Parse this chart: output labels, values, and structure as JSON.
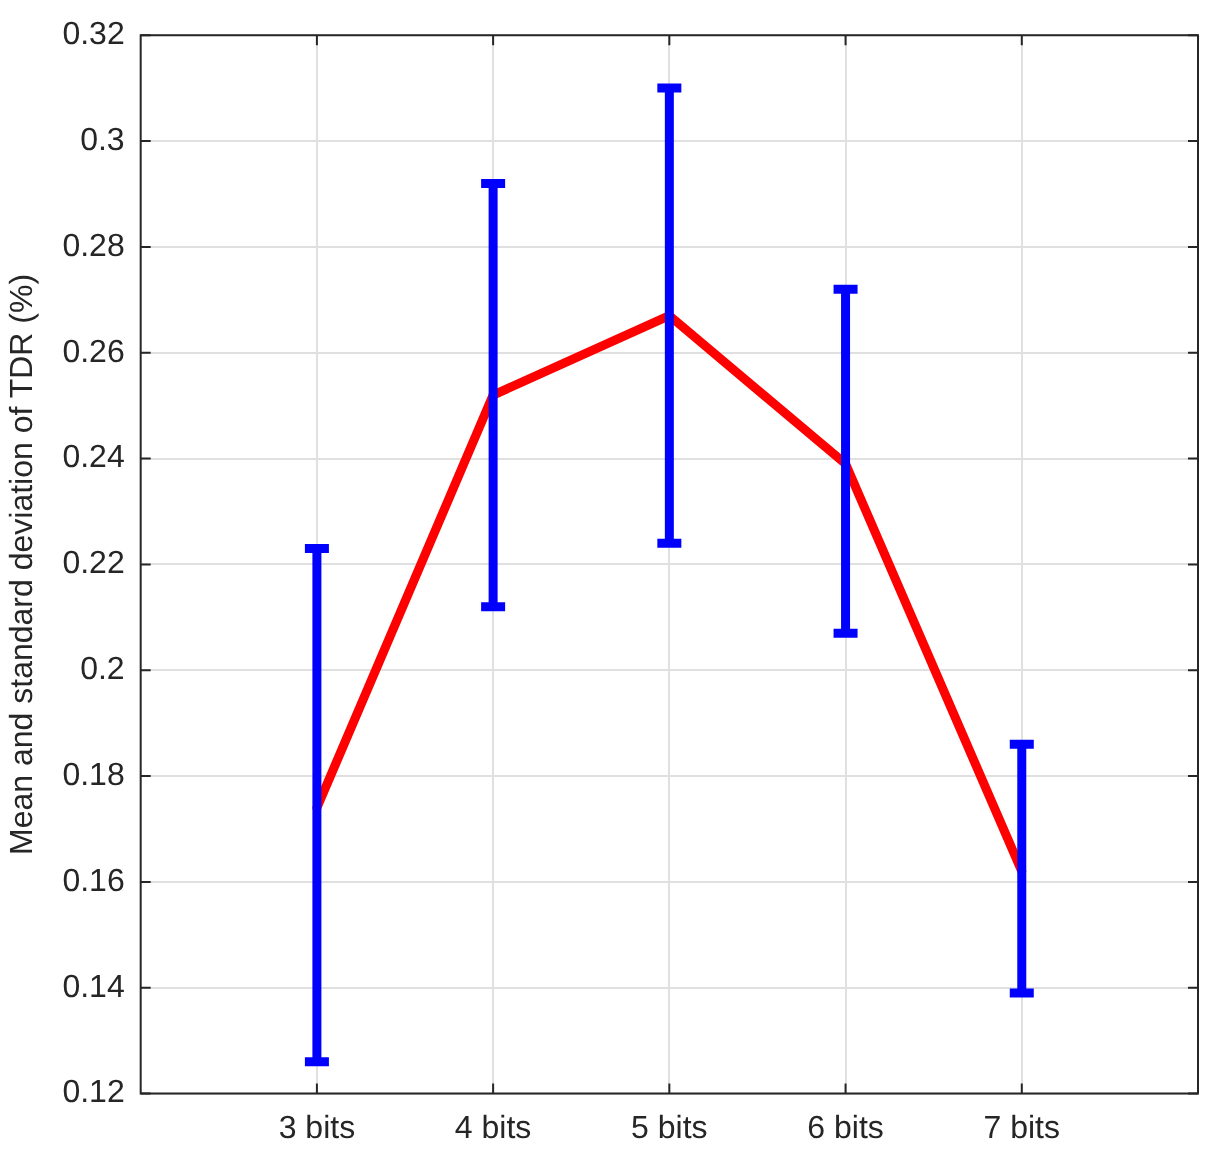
{
  "chart_data": {
    "type": "line",
    "ylabel": "Mean and standard deviation of TDR (%)",
    "categories": [
      "3 bits",
      "4 bits",
      "5 bits",
      "6 bits",
      "7 bits"
    ],
    "series": [
      {
        "color": "#ff0000",
        "values": [
          0.174,
          0.252,
          0.267,
          0.239,
          0.162
        ],
        "errors": [
          [
            0.126,
            0.223
          ],
          [
            0.212,
            0.292
          ],
          [
            0.224,
            0.31
          ],
          [
            0.207,
            0.272
          ],
          [
            0.139,
            0.186
          ]
        ]
      }
    ],
    "ylim": [
      0.12,
      0.32
    ],
    "yticks": [
      0.12,
      0.14,
      0.16,
      0.18,
      0.2,
      0.22,
      0.24,
      0.26,
      0.28,
      0.3,
      0.32
    ],
    "grid": true,
    "legend": false,
    "marker": "none",
    "line_style": "solid"
  }
}
